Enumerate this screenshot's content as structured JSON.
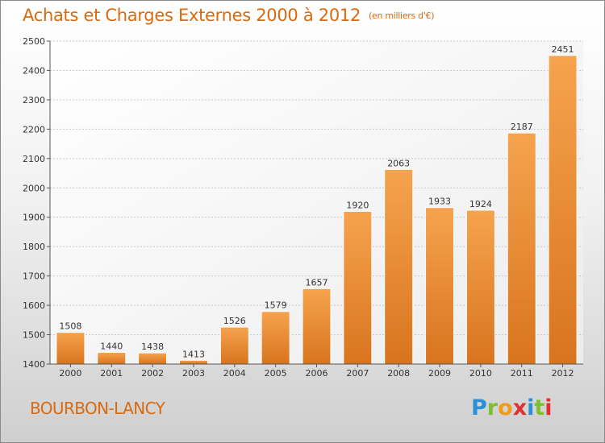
{
  "title": "Achats et Charges Externes 2000 à 2012",
  "subtitle": "(en milliers d'€)",
  "commune": "BOURBON-LANCY",
  "logo": {
    "letters": [
      "P",
      "r",
      "o",
      "x",
      "i",
      "t",
      "i"
    ],
    "colors": [
      "#2a8fd6",
      "#7cbf2f",
      "#f29a1d",
      "#e03030",
      "#2a8fd6",
      "#7cbf2f",
      "#e03030"
    ]
  },
  "colors": {
    "accent": "#d96a10",
    "bar_light": "#f6a34e",
    "bar_dark": "#d9741e"
  },
  "chart_data": {
    "type": "bar",
    "categories": [
      "2000",
      "2001",
      "2002",
      "2003",
      "2004",
      "2005",
      "2006",
      "2007",
      "2008",
      "2009",
      "2010",
      "2011",
      "2012"
    ],
    "values": [
      1508,
      1440,
      1438,
      1413,
      1526,
      1579,
      1657,
      1920,
      2063,
      1933,
      1924,
      2187,
      2451
    ],
    "ylim": [
      1400,
      2500
    ],
    "yticks": [
      1400,
      1500,
      1600,
      1700,
      1800,
      1900,
      2000,
      2100,
      2200,
      2300,
      2400,
      2500
    ],
    "grid": true
  }
}
